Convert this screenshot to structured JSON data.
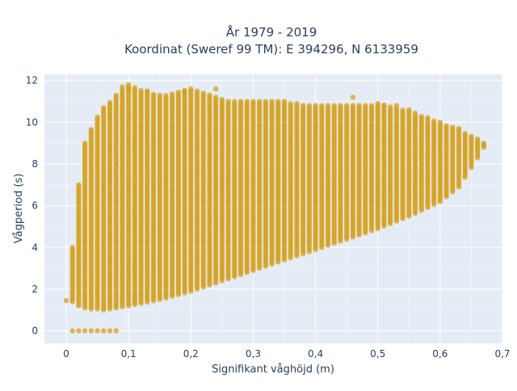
{
  "chart_data": {
    "type": "scatter",
    "title_line1": "År 1979 - 2019",
    "title_line2": "Koordinat (Sweref 99 TM): E 394296, N 6133959",
    "xlabel": "Signifikant våghöjd (m)",
    "ylabel": "Vågperiod (s)",
    "xlim": [
      -0.035,
      0.7
    ],
    "ylim": [
      -0.6,
      12.3
    ],
    "x_ticks": [
      0,
      0.1,
      0.2,
      0.3,
      0.4,
      0.5,
      0.6,
      0.7
    ],
    "x_tick_labels": [
      "0",
      "0,1",
      "0,2",
      "0,3",
      "0,4",
      "0,5",
      "0,6",
      "0,7"
    ],
    "y_ticks": [
      0,
      2,
      4,
      6,
      8,
      10,
      12
    ],
    "y_tick_labels": [
      "0",
      "2",
      "4",
      "6",
      "8",
      "10",
      "12"
    ],
    "grid": true,
    "background_color": "#e5ecf6",
    "marker_color": "#d4a21f",
    "grid_color": "#ffffff",
    "envelope": {
      "x": [
        0.01,
        0.02,
        0.03,
        0.04,
        0.05,
        0.06,
        0.08,
        0.1,
        0.15,
        0.2,
        0.25,
        0.3,
        0.35,
        0.4,
        0.45,
        0.5,
        0.55,
        0.6,
        0.63,
        0.66,
        0.67
      ],
      "y_min": [
        1.4,
        1.2,
        1.1,
        1.05,
        1.05,
        1.0,
        1.1,
        1.2,
        1.5,
        1.9,
        2.4,
        2.9,
        3.4,
        3.9,
        4.4,
        4.9,
        5.5,
        6.2,
        6.9,
        8.3,
        8.8
      ],
      "y_max": [
        4.0,
        7.0,
        9.0,
        9.7,
        10.3,
        10.7,
        11.3,
        11.8,
        11.3,
        11.6,
        11.1,
        11.0,
        11.0,
        10.8,
        10.8,
        10.9,
        10.6,
        10.0,
        9.7,
        9.2,
        9.0
      ]
    },
    "outliers": [
      {
        "x": 0.0,
        "y": 1.45
      },
      {
        "x": 0.01,
        "y": 0.0
      },
      {
        "x": 0.02,
        "y": 0.0
      },
      {
        "x": 0.03,
        "y": 0.0
      },
      {
        "x": 0.04,
        "y": 0.0
      },
      {
        "x": 0.05,
        "y": 0.0
      },
      {
        "x": 0.06,
        "y": 0.0
      },
      {
        "x": 0.07,
        "y": 0.0
      },
      {
        "x": 0.08,
        "y": 0.0
      },
      {
        "x": 0.09,
        "y": 11.7
      },
      {
        "x": 0.1,
        "y": 11.6
      },
      {
        "x": 0.13,
        "y": 11.5
      },
      {
        "x": 0.19,
        "y": 11.5
      },
      {
        "x": 0.24,
        "y": 11.6
      },
      {
        "x": 0.46,
        "y": 11.2
      },
      {
        "x": 0.51,
        "y": 10.8
      },
      {
        "x": 0.53,
        "y": 10.8
      },
      {
        "x": 0.56,
        "y": 10.0
      },
      {
        "x": 0.63,
        "y": 8.8
      },
      {
        "x": 0.67,
        "y": 8.9
      }
    ]
  }
}
